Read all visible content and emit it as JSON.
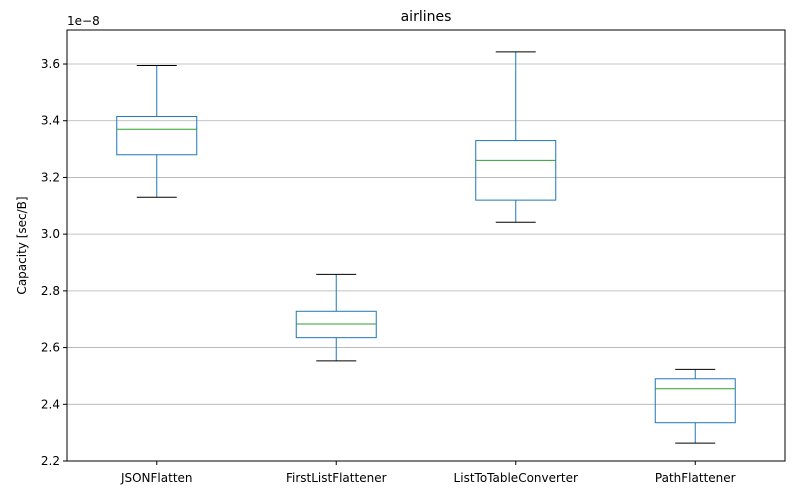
{
  "chart_data": {
    "type": "box",
    "title": "airlines",
    "ylabel": "Capacity [sec/B]",
    "xlabel": "",
    "y_offset_label": "1e−8",
    "ylim": [
      2.2,
      3.72
    ],
    "yticks": [
      2.2,
      2.4,
      2.6,
      2.8,
      3.0,
      3.2,
      3.4,
      3.6
    ],
    "ytick_labels": [
      "2.2",
      "2.4",
      "2.6",
      "2.8",
      "3.0",
      "3.2",
      "3.4",
      "3.6"
    ],
    "grid": "y",
    "categories": [
      "JSONFlatten",
      "FirstListFlattener",
      "ListToTableConverter",
      "PathFlattener"
    ],
    "boxes": [
      {
        "whisker_low": 3.13,
        "q1": 3.28,
        "median": 3.37,
        "q3": 3.415,
        "whisker_high": 3.595
      },
      {
        "whisker_low": 2.553,
        "q1": 2.635,
        "median": 2.683,
        "q3": 2.728,
        "whisker_high": 2.858
      },
      {
        "whisker_low": 3.042,
        "q1": 3.12,
        "median": 3.26,
        "q3": 3.33,
        "whisker_high": 3.643
      },
      {
        "whisker_low": 2.263,
        "q1": 2.335,
        "median": 2.455,
        "q3": 2.49,
        "whisker_high": 2.523
      }
    ],
    "colors": {
      "box": "#1f77b4",
      "median": "#2ca02c",
      "cap": "#000000",
      "grid": "#b0b0b0",
      "axes": "#000000"
    }
  }
}
